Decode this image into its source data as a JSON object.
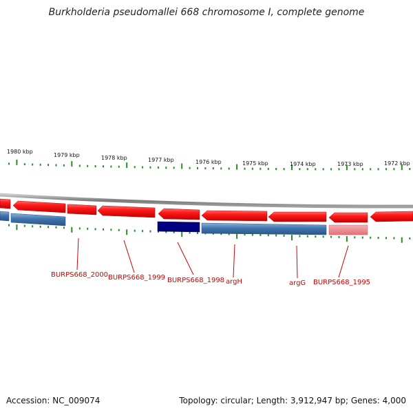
{
  "title": "Burkholderia pseudomallei 668 chromosome I, complete genome",
  "footer": {
    "accession": "Accession: NC_009074",
    "summary": "Topology: circular; Length: 3,912,947 bp; Genes: 4,000"
  },
  "colors": {
    "backbone": "#8a8a8a",
    "forward_gene": "#e8000c",
    "reverse_gene": "#3b6ea5",
    "reverse_gene_selected": "#000080",
    "pseudo_gene": "#e97a80",
    "tick": "#2a8a2a",
    "label": "#cc0000"
  },
  "scale_labels": [
    "1980 kbp",
    "1979 kbp",
    "1978 kbp",
    "1977 kbp",
    "1976 kbp",
    "1975 kbp",
    "1974 kbp",
    "1973 kbp",
    "1972 kbp"
  ],
  "gene_labels": [
    "BURPS668_2000",
    "BURPS668_1999",
    "BURPS668_1998",
    "argH",
    "argG",
    "BURPS668_1995"
  ]
}
